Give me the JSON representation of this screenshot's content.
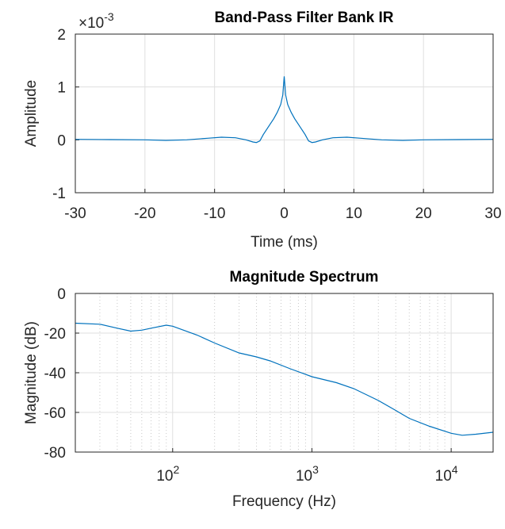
{
  "chart_data": [
    {
      "type": "line",
      "title": "Band-Pass Filter Bank IR",
      "xlabel": "Time (ms)",
      "ylabel": "Amplitude",
      "axis_multiplier": {
        "base": "×10",
        "exponent": "-3"
      },
      "x": [
        -30,
        -25,
        -20,
        -17,
        -14,
        -11,
        -9,
        -7,
        -5.5,
        -4.5,
        -4,
        -3.5,
        -3,
        -2,
        -1.5,
        -1,
        -0.5,
        -0.2,
        0,
        0.2,
        0.5,
        1,
        1.5,
        2,
        3,
        3.5,
        4,
        4.5,
        5.5,
        7,
        9,
        11,
        14,
        17,
        20,
        25,
        30
      ],
      "series": [
        {
          "color": "#0072bd",
          "values": [
            0.01,
            0.005,
            0,
            -0.01,
            0,
            0.03,
            0.05,
            0.04,
            0.0,
            -0.04,
            -0.05,
            -0.02,
            0.1,
            0.3,
            0.4,
            0.52,
            0.67,
            0.85,
            1.2,
            0.85,
            0.67,
            0.52,
            0.4,
            0.3,
            0.1,
            -0.02,
            -0.05,
            -0.04,
            0.0,
            0.04,
            0.05,
            0.03,
            0,
            -0.01,
            0,
            0.005,
            0.01
          ]
        }
      ],
      "xlim": [
        -30,
        30
      ],
      "xticks": [
        -30,
        -20,
        -10,
        0,
        10,
        20,
        30
      ],
      "ylim": [
        -1,
        2
      ],
      "yticks": [
        -1,
        0,
        1,
        2
      ],
      "grid": true
    },
    {
      "type": "line",
      "title": "Magnitude Spectrum",
      "xlabel": "Frequency (Hz)",
      "ylabel": "Magnitude (dB)",
      "x": [
        20,
        30,
        40,
        50,
        60,
        70,
        90,
        100,
        150,
        200,
        300,
        400,
        500,
        700,
        1000,
        1500,
        2000,
        3000,
        4000,
        5000,
        7000,
        10000,
        12000,
        15000,
        20000
      ],
      "series": [
        {
          "color": "#0072bd",
          "values": [
            -15,
            -15.5,
            -17.5,
            -19,
            -18.5,
            -17.5,
            -16,
            -16.5,
            -21,
            -25,
            -30,
            -32,
            -34,
            -38,
            -42,
            -45,
            -48,
            -54,
            -59,
            -63,
            -67,
            -70.5,
            -71.5,
            -71,
            -70
          ]
        }
      ],
      "xscale": "log",
      "xlim": [
        20,
        20000
      ],
      "xticks": [
        {
          "value": 100,
          "label": "10",
          "exponent": "2"
        },
        {
          "value": 1000,
          "label": "10",
          "exponent": "3"
        },
        {
          "value": 10000,
          "label": "10",
          "exponent": "4"
        }
      ],
      "ylim": [
        -80,
        0
      ],
      "yticks": [
        -80,
        -60,
        -40,
        -20,
        0
      ],
      "grid": true,
      "minor_grid": true
    }
  ]
}
